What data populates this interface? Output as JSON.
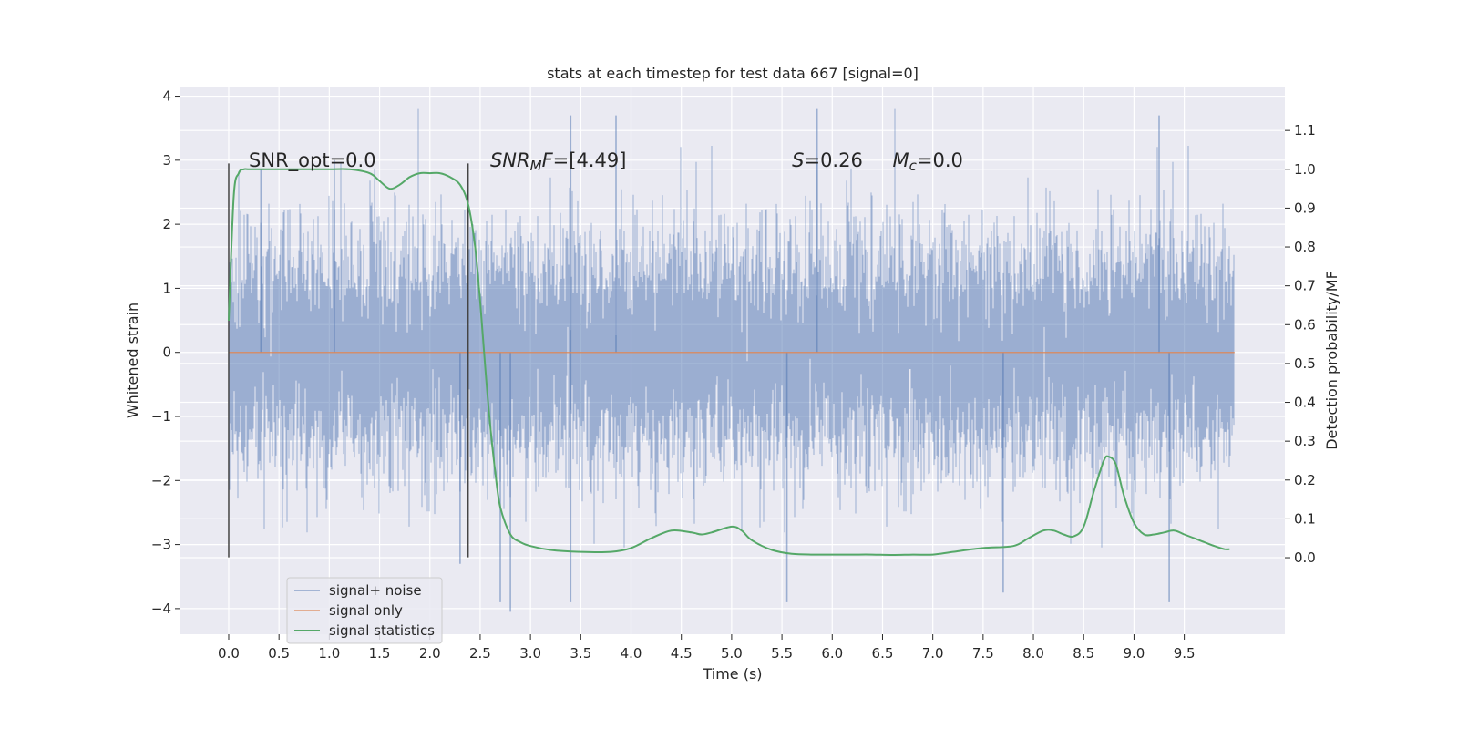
{
  "chart_data": {
    "type": "line",
    "title": "stats at each timestep for test data 667 [signal=0]",
    "xlabel": "Time (s)",
    "ylabel": "Whitened strain",
    "y2label": "Detection probability/MF",
    "xlim": [
      -0.48,
      10.5
    ],
    "ylim": [
      -4.4,
      4.15
    ],
    "y2lim": [
      -0.197,
      1.213
    ],
    "xticks": [
      "0.0",
      "0.5",
      "1.0",
      "1.5",
      "2.0",
      "2.5",
      "3.0",
      "3.5",
      "4.0",
      "4.5",
      "5.0",
      "5.5",
      "6.0",
      "6.5",
      "7.0",
      "7.5",
      "8.0",
      "8.5",
      "9.0",
      "9.5"
    ],
    "xtick_values": [
      0.0,
      0.5,
      1.0,
      1.5,
      2.0,
      2.5,
      3.0,
      3.5,
      4.0,
      4.5,
      5.0,
      5.5,
      6.0,
      6.5,
      7.0,
      7.5,
      8.0,
      8.5,
      9.0,
      9.5
    ],
    "yticks": [
      "−4",
      "−3",
      "−2",
      "−1",
      "0",
      "1",
      "2",
      "3",
      "4"
    ],
    "ytick_values": [
      -4,
      -3,
      -2,
      -1,
      0,
      1,
      2,
      3,
      4
    ],
    "y2ticks": [
      "0.0",
      "0.1",
      "0.2",
      "0.3",
      "0.4",
      "0.5",
      "0.6",
      "0.7",
      "0.8",
      "0.9",
      "1.0",
      "1.1"
    ],
    "y2tick_values": [
      0.0,
      0.1,
      0.2,
      0.3,
      0.4,
      0.5,
      0.6,
      0.7,
      0.8,
      0.9,
      1.0,
      1.1
    ],
    "grid": true,
    "legend_position": "lower-left",
    "series": [
      {
        "name": "signal+ noise",
        "color": "#4c72b0",
        "axis": "left",
        "style": "dense-noise",
        "x_range": [
          0.0,
          10.0
        ],
        "envelope_max": 3.8,
        "envelope_min": -4.05,
        "spikes": [
          {
            "x": 0.32,
            "y": 2.85
          },
          {
            "x": 1.05,
            "y": 3.0
          },
          {
            "x": 2.3,
            "y": -3.3
          },
          {
            "x": 2.7,
            "y": -3.9
          },
          {
            "x": 2.8,
            "y": -4.05
          },
          {
            "x": 3.4,
            "y": 3.7
          },
          {
            "x": 3.4,
            "y": -3.9
          },
          {
            "x": 3.85,
            "y": 3.7
          },
          {
            "x": 5.85,
            "y": 3.8
          },
          {
            "x": 5.55,
            "y": -3.9
          },
          {
            "x": 7.7,
            "y": -3.75
          },
          {
            "x": 9.25,
            "y": 3.7
          },
          {
            "x": 9.35,
            "y": -3.9
          }
        ]
      },
      {
        "name": "signal only",
        "color": "#dd8452",
        "axis": "left",
        "x": [
          0.0,
          10.0
        ],
        "y": [
          0.0,
          0.0
        ]
      },
      {
        "name": "signal statistics",
        "color": "#55a868",
        "axis": "right",
        "x": [
          0.0,
          0.05,
          0.1,
          0.15,
          0.2,
          0.3,
          0.5,
          0.8,
          1.0,
          1.2,
          1.4,
          1.5,
          1.6,
          1.7,
          1.8,
          1.9,
          2.0,
          2.1,
          2.2,
          2.3,
          2.38,
          2.45,
          2.5,
          2.55,
          2.6,
          2.65,
          2.7,
          2.8,
          2.9,
          3.0,
          3.2,
          3.5,
          3.8,
          4.0,
          4.2,
          4.4,
          4.6,
          4.7,
          4.8,
          5.0,
          5.1,
          5.2,
          5.4,
          5.6,
          5.8,
          6.0,
          6.2,
          6.4,
          6.6,
          6.8,
          7.0,
          7.2,
          7.5,
          7.8,
          7.95,
          8.1,
          8.2,
          8.3,
          8.4,
          8.5,
          8.6,
          8.7,
          8.75,
          8.82,
          8.9,
          9.0,
          9.1,
          9.2,
          9.3,
          9.4,
          9.5,
          9.6,
          9.7,
          9.8,
          9.9,
          9.95
        ],
        "y": [
          0.61,
          0.93,
          0.99,
          1.0,
          1.0,
          1.0,
          1.0,
          1.0,
          1.0,
          1.0,
          0.99,
          0.97,
          0.95,
          0.96,
          0.98,
          0.99,
          0.99,
          0.99,
          0.98,
          0.96,
          0.91,
          0.8,
          0.66,
          0.49,
          0.34,
          0.22,
          0.13,
          0.06,
          0.04,
          0.03,
          0.02,
          0.015,
          0.015,
          0.025,
          0.05,
          0.07,
          0.065,
          0.06,
          0.065,
          0.08,
          0.07,
          0.045,
          0.02,
          0.01,
          0.008,
          0.008,
          0.008,
          0.008,
          0.007,
          0.008,
          0.008,
          0.015,
          0.025,
          0.03,
          0.05,
          0.07,
          0.07,
          0.06,
          0.055,
          0.08,
          0.17,
          0.25,
          0.26,
          0.24,
          0.16,
          0.09,
          0.06,
          0.06,
          0.065,
          0.07,
          0.06,
          0.05,
          0.04,
          0.03,
          0.022,
          0.022
        ]
      }
    ],
    "vlines": [
      {
        "x": 0.0,
        "y_range": [
          -3.2,
          2.95
        ],
        "color": "#444444"
      },
      {
        "x": 2.38,
        "y_range": [
          -3.2,
          2.95
        ],
        "color": "#444444"
      }
    ],
    "annotations": [
      {
        "id": "snr_opt",
        "x": 0.2,
        "y": 2.9,
        "parts": [
          {
            "t": "SNR_opt=0.0",
            "style": "normal"
          }
        ]
      },
      {
        "id": "snr_mf",
        "x": 2.6,
        "y": 2.9,
        "parts": [
          {
            "t": "SNR",
            "style": "italic"
          },
          {
            "t": "M",
            "style": "italic-sub"
          },
          {
            "t": "F",
            "style": "italic"
          },
          {
            "t": "=[4.49]",
            "style": "normal"
          }
        ]
      },
      {
        "id": "s_value",
        "x": 5.6,
        "y": 2.9,
        "parts": [
          {
            "t": "S",
            "style": "italic"
          },
          {
            "t": "=0.26",
            "style": "normal"
          }
        ]
      },
      {
        "id": "mc_value",
        "x": 6.6,
        "y": 2.9,
        "parts": [
          {
            "t": "M",
            "style": "italic"
          },
          {
            "t": "c",
            "style": "italic-sub"
          },
          {
            "t": "=0.0",
            "style": "normal"
          }
        ]
      }
    ],
    "legend": [
      "signal+ noise",
      "signal only",
      "signal statistics"
    ]
  }
}
